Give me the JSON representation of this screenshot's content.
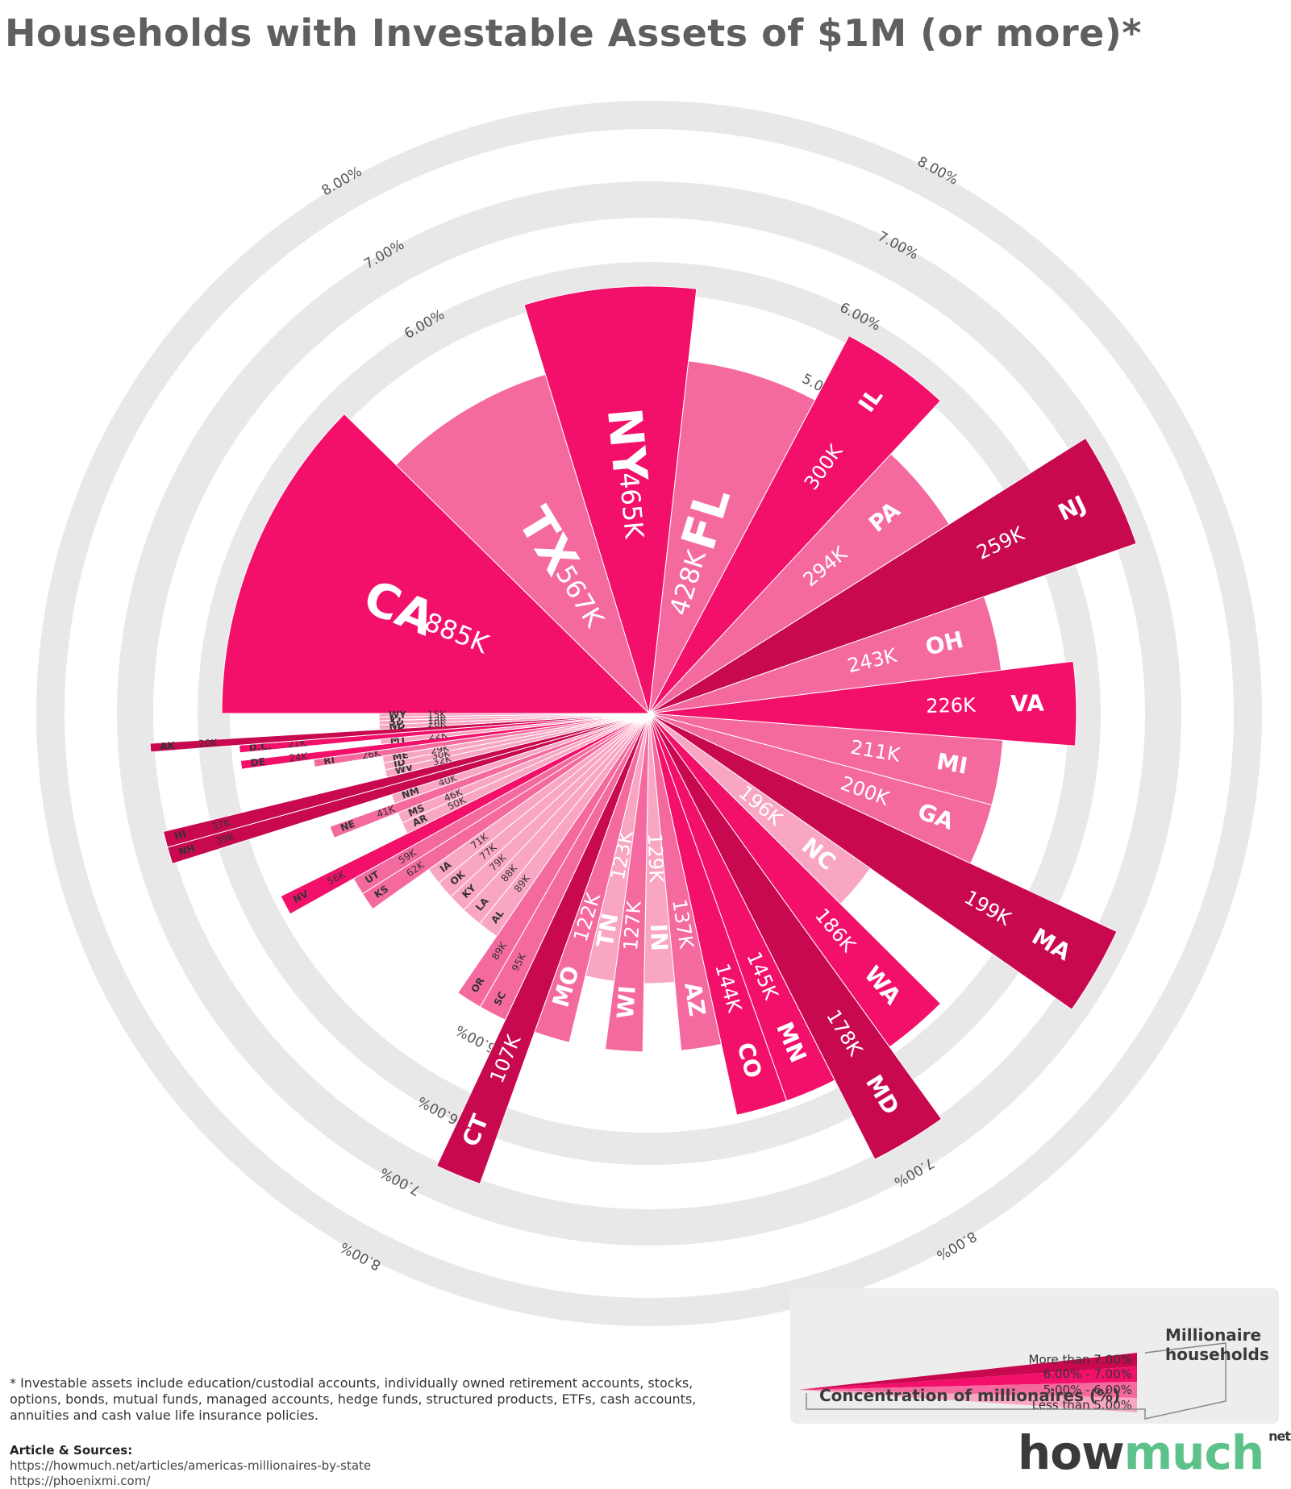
{
  "title": "Households with Investable Assets of $1M (or more)*",
  "colors": {
    "band_high": "#c8094f",
    "band_mid_high": "#f2106a",
    "band_mid": "#f56a9e",
    "band_low": "#f9a6c3",
    "ring": "#e8e8e8",
    "ring_label": "#555555"
  },
  "chart_data": {
    "type": "radial bar",
    "value_unit": "Millionaire households",
    "radius_unit": "Concentration of millionaires (%)",
    "ring_ticks": [
      "5.00%",
      "6.00%",
      "7.00%",
      "8.00%"
    ],
    "bands": [
      {
        "key": "high",
        "label": "More than 7.00%"
      },
      {
        "key": "mid_high",
        "label": "6.00% - 7.00%"
      },
      {
        "key": "mid",
        "label": "5.00% - 6.00%"
      },
      {
        "key": "low",
        "label": "Less than 5.00%"
      }
    ],
    "states": [
      {
        "state": "CA",
        "label": "885K",
        "households": 885,
        "band": "mid_high"
      },
      {
        "state": "TX",
        "label": "567K",
        "households": 567,
        "band": "mid"
      },
      {
        "state": "NY",
        "label": "465K",
        "households": 465,
        "band": "mid_high"
      },
      {
        "state": "FL",
        "label": "428K",
        "households": 428,
        "band": "mid"
      },
      {
        "state": "IL",
        "label": "300K",
        "households": 300,
        "band": "mid_high"
      },
      {
        "state": "PA",
        "label": "294K",
        "households": 294,
        "band": "mid"
      },
      {
        "state": "NJ",
        "label": "259K",
        "households": 259,
        "band": "high"
      },
      {
        "state": "OH",
        "label": "243K",
        "households": 243,
        "band": "mid"
      },
      {
        "state": "VA",
        "label": "226K",
        "households": 226,
        "band": "mid_high"
      },
      {
        "state": "MI",
        "label": "211K",
        "households": 211,
        "band": "mid"
      },
      {
        "state": "GA",
        "label": "200K",
        "households": 200,
        "band": "mid"
      },
      {
        "state": "MA",
        "label": "199K",
        "households": 199,
        "band": "high"
      },
      {
        "state": "NC",
        "label": "196K",
        "households": 196,
        "band": "low"
      },
      {
        "state": "WA",
        "label": "186K",
        "households": 186,
        "band": "mid_high"
      },
      {
        "state": "MD",
        "label": "178K",
        "households": 178,
        "band": "high"
      },
      {
        "state": "MN",
        "label": "145K",
        "households": 145,
        "band": "mid_high"
      },
      {
        "state": "CO",
        "label": "144K",
        "households": 144,
        "band": "mid_high"
      },
      {
        "state": "AZ",
        "label": "137K",
        "households": 137,
        "band": "mid"
      },
      {
        "state": "IN",
        "label": "129K",
        "households": 129,
        "band": "low"
      },
      {
        "state": "WI",
        "label": "127K",
        "households": 127,
        "band": "mid"
      },
      {
        "state": "TN",
        "label": "123K",
        "households": 123,
        "band": "low"
      },
      {
        "state": "MO",
        "label": "122K",
        "households": 122,
        "band": "mid"
      },
      {
        "state": "CT",
        "label": "107K",
        "households": 107,
        "band": "high"
      },
      {
        "state": "SC",
        "label": "95K",
        "households": 95,
        "band": "mid"
      },
      {
        "state": "OR",
        "label": "89K",
        "households": 89,
        "band": "mid"
      },
      {
        "state": "AL",
        "label": "89K",
        "households": 89,
        "band": "low"
      },
      {
        "state": "LA",
        "label": "88K",
        "households": 88,
        "band": "low"
      },
      {
        "state": "KY",
        "label": "79K",
        "households": 79,
        "band": "low"
      },
      {
        "state": "OK",
        "label": "77K",
        "households": 77,
        "band": "low"
      },
      {
        "state": "IA",
        "label": "71K",
        "households": 71,
        "band": "low"
      },
      {
        "state": "KS",
        "label": "62K",
        "households": 62,
        "band": "mid"
      },
      {
        "state": "UT",
        "label": "59K",
        "households": 59,
        "band": "mid"
      },
      {
        "state": "NV",
        "label": "56K",
        "households": 56,
        "band": "mid_high"
      },
      {
        "state": "AR",
        "label": "50K",
        "households": 50,
        "band": "low"
      },
      {
        "state": "MS",
        "label": "46K",
        "households": 46,
        "band": "low"
      },
      {
        "state": "NE",
        "label": "41K",
        "households": 41,
        "band": "mid"
      },
      {
        "state": "NM",
        "label": "40K",
        "households": 40,
        "band": "low"
      },
      {
        "state": "NH",
        "label": "39K",
        "households": 39,
        "band": "high"
      },
      {
        "state": "HI",
        "label": "37K",
        "households": 37,
        "band": "high"
      },
      {
        "state": "WV",
        "label": "32K",
        "households": 32,
        "band": "low"
      },
      {
        "state": "ID",
        "label": "30K",
        "households": 30,
        "band": "low"
      },
      {
        "state": "ME",
        "label": "29K",
        "households": 29,
        "band": "low"
      },
      {
        "state": "RI",
        "label": "26K",
        "households": 26,
        "band": "mid"
      },
      {
        "state": "DE",
        "label": "24K",
        "households": 24,
        "band": "mid_high"
      },
      {
        "state": "MT",
        "label": "22K",
        "households": 22,
        "band": "low"
      },
      {
        "state": "D.C.",
        "label": "21K",
        "households": 21,
        "band": "mid_high"
      },
      {
        "state": "AK",
        "label": "20K",
        "households": 20,
        "band": "high"
      },
      {
        "state": "ND",
        "label": "20K",
        "households": 20,
        "band": "low"
      },
      {
        "state": "SD",
        "label": "18K",
        "households": 18,
        "band": "low"
      },
      {
        "state": "VT",
        "label": "15K",
        "households": 15,
        "band": "low"
      },
      {
        "state": "WY",
        "label": "15K",
        "households": 15,
        "band": "low"
      }
    ]
  },
  "legend": {
    "side_title_1": "Millionaire",
    "side_title_2": "households",
    "bottom_title": "Concentration of millionaires (%)"
  },
  "footnote": "* Investable assets include education/custodial accounts, individually owned retirement accounts, stocks, options, bonds, mutual funds, managed accounts, hedge funds, structured products, ETFs, cash accounts, annuities and cash value life insurance policies.",
  "sources": {
    "heading": "Article & Sources:",
    "link1": "https://howmuch.net/articles/americas-millionaires-by-state",
    "link2": "https://phoenixmi.com/"
  },
  "logo": {
    "how": "how",
    "much": "much",
    "net": "net"
  }
}
